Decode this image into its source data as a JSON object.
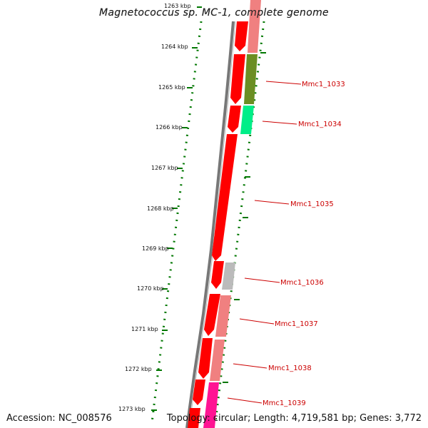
{
  "title": "Magnetococcus sp. MC-1, complete genome",
  "accession": "Accession: NC_008576",
  "summary": "Topology: circular; Length: 4,719,581 bp; Genes: 3,772",
  "ruler": {
    "unit": "kbp",
    "ticks": [
      "1263 kbp",
      "1264 kbp",
      "1265 kbp",
      "1266 kbp",
      "1267 kbp",
      "1268 kbp",
      "1269 kbp",
      "1270 kbp",
      "1271 kbp",
      "1272 kbp",
      "1273 kbp"
    ]
  },
  "colors": {
    "cds": "#ff0000",
    "ruler": "#007700",
    "label": "#cc0000",
    "backbone": "#777777"
  },
  "gene_labels": [
    "Mmc1_1033",
    "Mmc1_1034",
    "Mmc1_1035",
    "Mmc1_1036",
    "Mmc1_1037",
    "Mmc1_1038",
    "Mmc1_1039"
  ]
}
